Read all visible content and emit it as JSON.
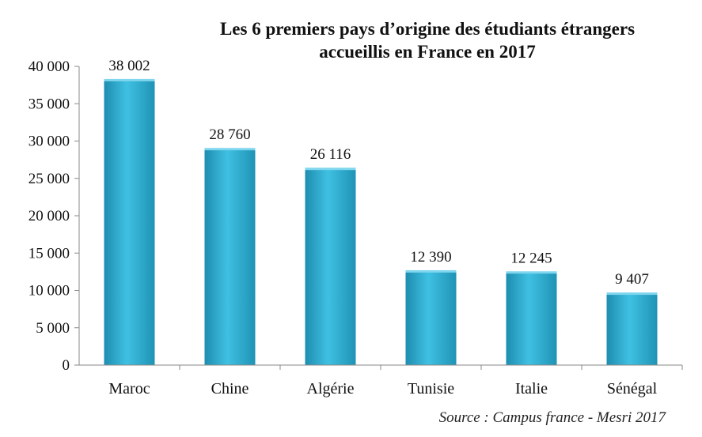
{
  "chart_data": {
    "type": "bar",
    "title_line1": "Les 6 premiers pays d’origine des étudiants étrangers",
    "title_line2": "accueillis en France en 2017",
    "categories": [
      "Maroc",
      "Chine",
      "Algérie",
      "Tunisie",
      "Italie",
      "Sénégal"
    ],
    "values": [
      38002,
      28760,
      26116,
      12390,
      12245,
      9407
    ],
    "value_labels": [
      "38 002",
      "28 760",
      "26 116",
      "12 390",
      "12 245",
      "9 407"
    ],
    "yticks": [
      0,
      5000,
      10000,
      15000,
      20000,
      25000,
      30000,
      35000,
      40000
    ],
    "ytick_labels": [
      "0",
      "5 000",
      "10 000",
      "15 000",
      "20 000",
      "25 000",
      "30 000",
      "35 000",
      "40 000"
    ],
    "ylim": [
      0,
      40000
    ],
    "xlabel": "",
    "ylabel": "",
    "bar_color": "#3BB3D6",
    "source": "Source : Campus france - Mesri 2017"
  }
}
